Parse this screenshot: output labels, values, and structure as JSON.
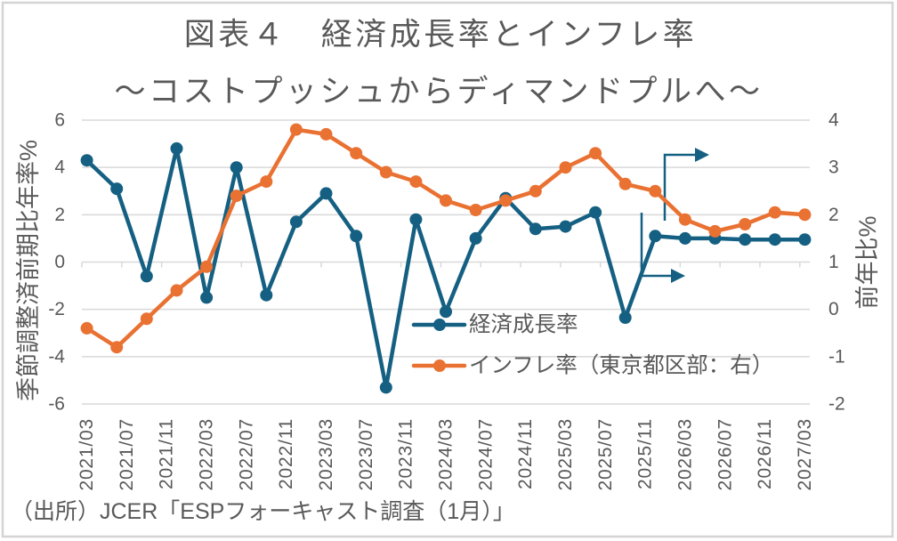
{
  "source_note": "（出所）JCER「ESPフォーキャスト調査（1月）」",
  "colors": {
    "text": "#595959",
    "grid": "#d9d9d9",
    "frame": "#d4d4d4",
    "annotation_arrow": "#156082"
  },
  "chart_data": {
    "type": "line",
    "title": "図表４　経済成長率とインフレ率",
    "subtitle": "～コストプッシュからディマンドプルへ～",
    "x": [
      "2021/03",
      "2021/06",
      "2021/09",
      "2021/12",
      "2022/03",
      "2022/06",
      "2022/09",
      "2022/12",
      "2023/03",
      "2023/06",
      "2023/09",
      "2023/12",
      "2024/03",
      "2024/06",
      "2024/09",
      "2024/12",
      "2025/03",
      "2025/06",
      "2025/09",
      "2025/12",
      "2026/03",
      "2026/06",
      "2026/09",
      "2026/12",
      "2027/03"
    ],
    "xlim": [
      "2021/03",
      "2027/03"
    ],
    "x_tick_interval_months": 4,
    "x_tick_labels": [
      "2021/03",
      "2021/07",
      "2021/11",
      "2022/03",
      "2022/07",
      "2022/11",
      "2023/03",
      "2023/07",
      "2023/11",
      "2024/03",
      "2024/07",
      "2024/11",
      "2025/03",
      "2025/07",
      "2025/11",
      "2026/03",
      "2026/07",
      "2026/11",
      "2027/03"
    ],
    "x_axis_crosses_at": 0,
    "y_left": {
      "label": "季節調整済前期比年率%",
      "ylim": [
        -6,
        6
      ],
      "ticks": [
        6,
        4,
        2,
        0,
        -2,
        -4,
        -6
      ]
    },
    "y_right": {
      "label": "前年比%",
      "ylim": [
        -2,
        4
      ],
      "ticks": [
        4,
        3,
        2,
        1,
        0,
        -1,
        -2
      ]
    },
    "series": [
      {
        "name": "経済成長率",
        "axis": "left",
        "color": "#156082",
        "values": [
          4.3,
          3.1,
          -0.6,
          4.8,
          -1.5,
          4.0,
          -1.4,
          1.7,
          2.9,
          1.1,
          -5.3,
          1.8,
          -2.1,
          1.0,
          2.7,
          1.4,
          1.5,
          2.1,
          -2.35,
          1.1,
          1.0,
          1.0,
          0.95,
          0.95,
          0.95
        ]
      },
      {
        "name": "インフレ率（東京都区部：右）",
        "axis": "right",
        "color": "#E97132",
        "values": [
          -0.4,
          -0.8,
          -0.2,
          0.4,
          0.9,
          2.4,
          2.7,
          3.8,
          3.7,
          3.3,
          2.9,
          2.7,
          2.3,
          2.1,
          2.3,
          2.5,
          3.0,
          3.3,
          2.65,
          2.5,
          1.9,
          1.65,
          1.8,
          2.05,
          2.0
        ]
      }
    ],
    "legend": "bottom-center-inside",
    "grid": true
  }
}
